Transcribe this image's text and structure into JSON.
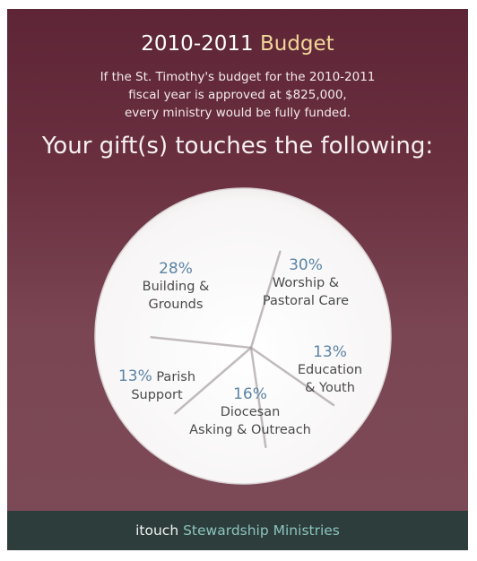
{
  "header": {
    "title_year": "2010-2011",
    "title_word": "Budget",
    "intro_lines": [
      "If the St. Timothy's budget for the 2010-2011",
      "fiscal year is approved at $825,000,",
      "every ministry would be fully funded."
    ],
    "tagline": "Your gift(s) touches the following:"
  },
  "chart_data": {
    "type": "pie",
    "title": "",
    "slices": [
      {
        "percent_label": "28%",
        "label_lines": [
          "Building &",
          "Grounds"
        ],
        "value": 28
      },
      {
        "percent_label": "30%",
        "label_lines": [
          "Worship &",
          "Pastoral Care"
        ],
        "value": 30
      },
      {
        "percent_label": "13%",
        "label_lines": [
          "Education",
          "& Youth"
        ],
        "value": 13
      },
      {
        "percent_label": "16%",
        "label_lines": [
          "Diocesan",
          "Asking & Outreach"
        ],
        "value": 16
      },
      {
        "percent_label": "13%",
        "label_lines": [
          "Parish",
          "Support"
        ],
        "value": 13
      }
    ]
  },
  "footer": {
    "brand_prefix": "itouch",
    "brand_accent": "Stewardship Ministries"
  },
  "colors": {
    "background_top": "#5e2536",
    "background_bottom": "#7c4a57",
    "title_accent": "#f2d79a",
    "percent_color": "#5b84a6",
    "label_color": "#4a4a4a",
    "footer_bg": "#2d3d3b",
    "footer_accent": "#8cc4bf"
  }
}
